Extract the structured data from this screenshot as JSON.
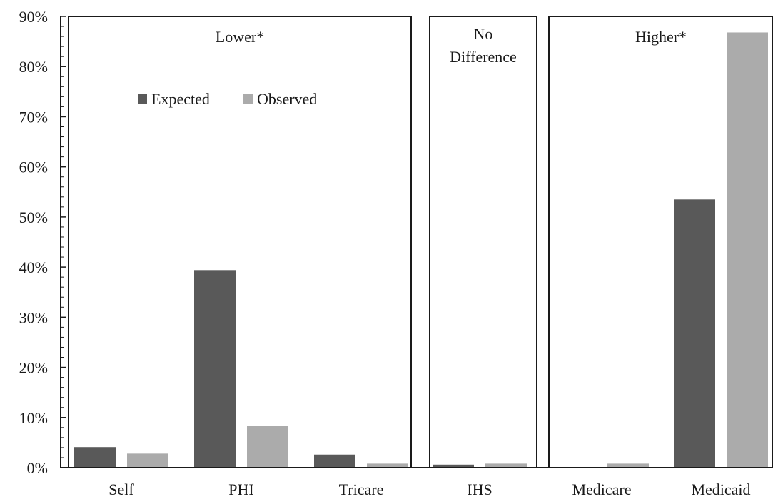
{
  "chart_data": {
    "type": "bar",
    "title": "",
    "xlabel": "",
    "ylabel": "",
    "ylim": [
      0,
      0.9
    ],
    "y_ticks": [
      "0%",
      "10%",
      "20%",
      "30%",
      "40%",
      "50%",
      "60%",
      "70%",
      "80%",
      "90%"
    ],
    "y_tick_values": [
      0,
      0.1,
      0.2,
      0.3,
      0.4,
      0.5,
      0.6,
      0.7,
      0.8,
      0.9
    ],
    "categories": [
      "Self",
      "PHI",
      "Tricare",
      "IHS",
      "Medicare",
      "Medicaid"
    ],
    "series": [
      {
        "name": "Expected",
        "color": "#595959",
        "values": [
          0.041,
          0.394,
          0.026,
          0.006,
          0.001,
          0.535
        ]
      },
      {
        "name": "Observed",
        "color": "#ababab",
        "values": [
          0.028,
          0.083,
          0.008,
          0.008,
          0.008,
          0.868
        ]
      }
    ],
    "groups": [
      {
        "label_lines": [
          "Lower*"
        ],
        "categories": [
          "Self",
          "PHI",
          "Tricare"
        ]
      },
      {
        "label_lines": [
          "No",
          "Difference"
        ],
        "categories": [
          "IHS"
        ]
      },
      {
        "label_lines": [
          "Higher*"
        ],
        "categories": [
          "Medicare",
          "Medicaid"
        ]
      }
    ],
    "legend": {
      "placement": "inside-top-left",
      "entries": [
        "Expected",
        "Observed"
      ]
    },
    "grid": false
  }
}
